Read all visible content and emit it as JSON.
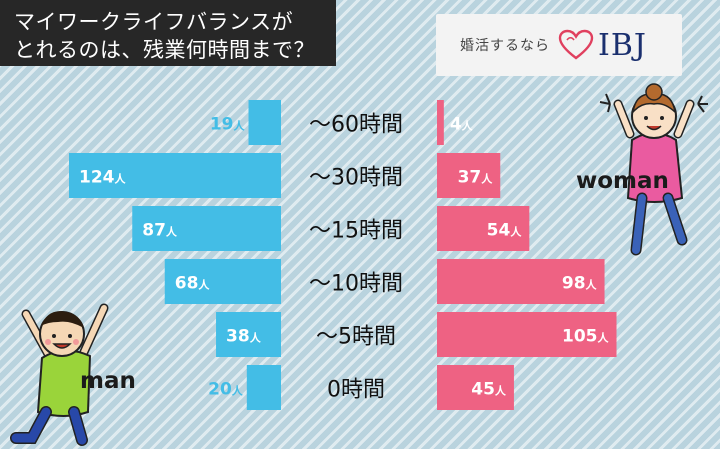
{
  "title": {
    "line1": "マイワークライフバランスが",
    "line2": "とれるのは、残業何時間まで？"
  },
  "logo": {
    "tagline": "婚活するなら",
    "brand": "IBJ"
  },
  "colors": {
    "man": "#43bde6",
    "woman": "#ee6283",
    "background": "#b9d3de"
  },
  "icons": [
    "man-figure-icon",
    "woman-figure-icon",
    "heart-icon"
  ],
  "chart_data": {
    "type": "bar",
    "orientation": "horizontal-butterfly",
    "categories": [
      "～60時間",
      "～30時間",
      "～15時間",
      "～10時間",
      "～5時間",
      "0時間"
    ],
    "unit": "人",
    "series": [
      {
        "name": "man",
        "values": [
          19,
          124,
          87,
          68,
          38,
          20
        ]
      },
      {
        "name": "woman",
        "values": [
          4,
          37,
          54,
          98,
          105,
          45
        ]
      }
    ],
    "xlim": [
      0,
      124
    ]
  }
}
